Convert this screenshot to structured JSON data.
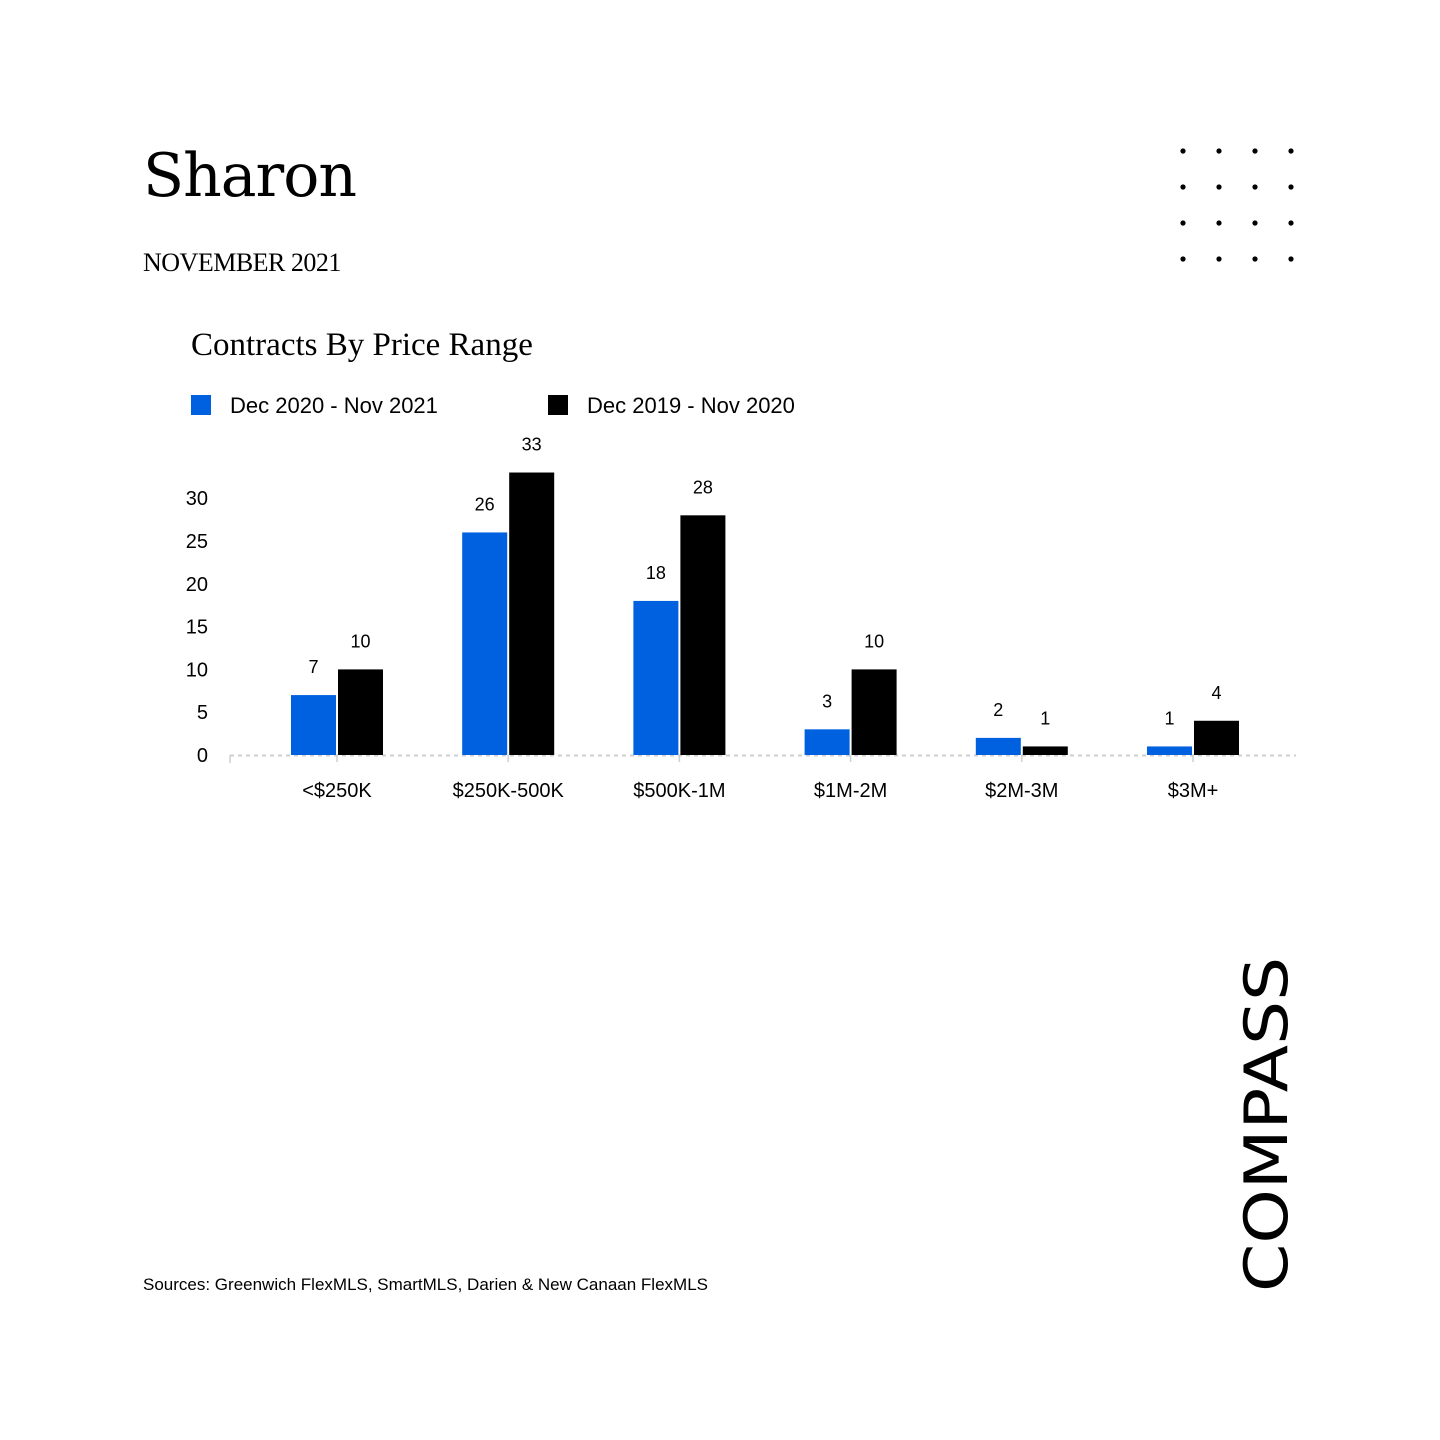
{
  "header": {
    "title": "Sharon",
    "subtitle": "NOVEMBER 2021"
  },
  "footer": {
    "sources": "Sources: Greenwich FlexMLS, SmartMLS, Darien & New Canaan FlexMLS"
  },
  "brand": {
    "logo_text": "COMPASS"
  },
  "chart_data": {
    "type": "bar",
    "title": "Contracts By Price Range",
    "categories": [
      "<$250K",
      "$250K-500K",
      "$500K-1M",
      "$1M-2M",
      "$2M-3M",
      "$3M+"
    ],
    "series": [
      {
        "name": "Dec 2020 - Nov 2021",
        "color": "#0061E0",
        "values": [
          7,
          26,
          18,
          3,
          2,
          1
        ]
      },
      {
        "name": "Dec 2019 - Nov 2020",
        "color": "#000000",
        "values": [
          10,
          33,
          28,
          10,
          1,
          4
        ]
      }
    ],
    "yticks": [
      0,
      5,
      10,
      15,
      20,
      25,
      30
    ],
    "ylim": [
      0,
      33
    ],
    "xlabel": "",
    "ylabel": "",
    "grid": false,
    "legend_position": "top-left",
    "data_labels": true
  }
}
